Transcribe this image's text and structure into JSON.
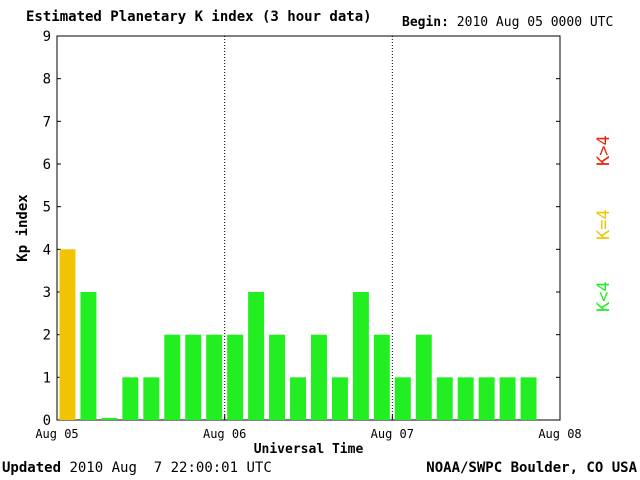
{
  "header": {
    "title": "Estimated Planetary K index (3 hour data)",
    "begin_label": "Begin:",
    "begin_value": "2010 Aug 05 0000 UTC"
  },
  "footer": {
    "updated_label": "Updated",
    "updated_value": "2010 Aug  7 22:00:01 UTC",
    "credit": "NOAA/SWPC Boulder, CO USA"
  },
  "legend": [
    {
      "label": "K<4",
      "color": "#22ee22"
    },
    {
      "label": "K=4",
      "color": "#f2c300"
    },
    {
      "label": "K>4",
      "color": "#ee2200"
    }
  ],
  "chart_data": {
    "type": "bar",
    "title": "Estimated Planetary K index (3 hour data)",
    "xlabel": "Universal Time",
    "ylabel": "Kp index",
    "ylim": [
      0,
      9
    ],
    "yticks": [
      0,
      1,
      2,
      3,
      4,
      5,
      6,
      7,
      8,
      9
    ],
    "x_ticks": [
      "Aug 05",
      "Aug 06",
      "Aug 07",
      "Aug 08"
    ],
    "grid": "vertical dotted at day boundaries",
    "interval_hours": 3,
    "values": [
      4,
      3,
      0.05,
      1,
      1,
      2,
      2,
      2,
      2,
      3,
      2,
      1,
      2,
      1,
      3,
      2,
      1,
      2,
      1,
      1,
      1,
      1,
      1
    ],
    "colors": {
      "below4": "#22ee22",
      "equal4": "#f2c300",
      "above4": "#ee2200"
    }
  }
}
